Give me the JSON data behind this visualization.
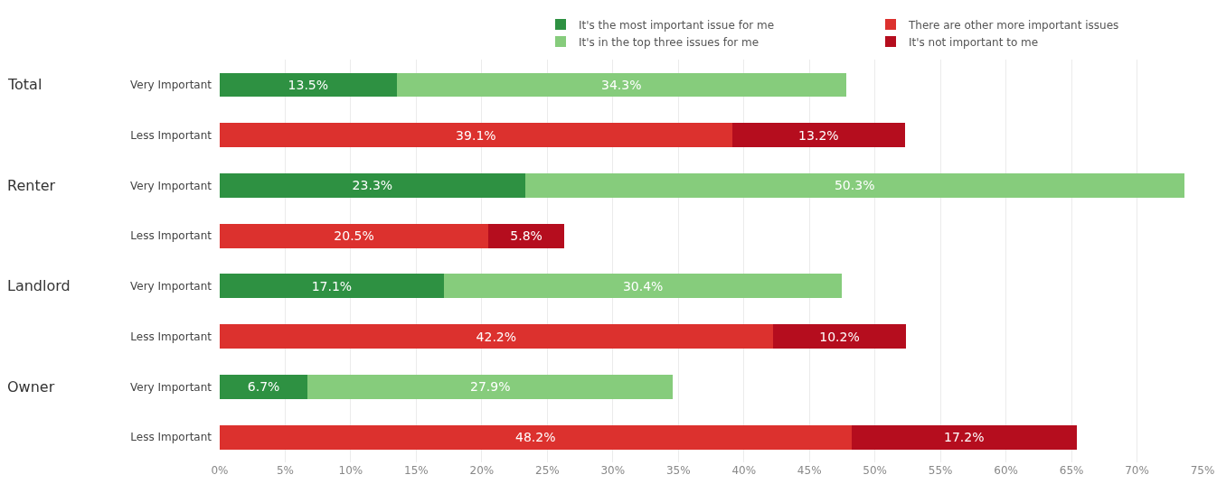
{
  "chart_data": {
    "type": "bar",
    "orientation": "horizontal",
    "stacked": true,
    "categories": [
      "Very Important",
      "Less Important",
      "Very Important",
      "Less Important",
      "Very Important",
      "Less Important",
      "Very Important",
      "Less Important"
    ],
    "series": [
      {
        "name": "It's the most important issue for me",
        "color": "#2e9142",
        "values": [
          13.5,
          null,
          23.3,
          null,
          17.1,
          null,
          6.7,
          null
        ],
        "value_labels": [
          "13.5%",
          null,
          "23.3%",
          null,
          "17.1%",
          null,
          "6.7%",
          null
        ]
      },
      {
        "name": "There are other more important issues",
        "color": "#dc312e",
        "values": [
          null,
          39.1,
          null,
          20.5,
          null,
          42.2,
          null,
          48.2
        ],
        "value_labels": [
          null,
          "39.1%",
          null,
          "20.5%",
          null,
          "42.2%",
          null,
          "48.2%"
        ]
      },
      {
        "name": "It's in the top three issues for me",
        "color": "#86cc7c",
        "values": [
          34.3,
          null,
          50.3,
          null,
          30.4,
          null,
          27.9,
          null
        ],
        "value_labels": [
          "34.3%",
          null,
          "50.3%",
          null,
          "30.4%",
          null,
          "27.9%",
          null
        ]
      },
      {
        "name": "It's not important to me",
        "color": "#b50d1e",
        "values": [
          null,
          13.2,
          null,
          5.8,
          null,
          10.2,
          null,
          17.2
        ],
        "value_labels": [
          null,
          "13.2%",
          null,
          "5.8%",
          null,
          "10.2%",
          null,
          "17.2%"
        ]
      }
    ],
    "annotations": [
      "Total",
      "Renter",
      "Landlord",
      "Owner"
    ],
    "xlim": [
      0,
      75
    ],
    "xticks": [
      {
        "value": 0,
        "label": "0%"
      },
      {
        "value": 5,
        "label": "5%"
      },
      {
        "value": 10,
        "label": "10%"
      },
      {
        "value": 15,
        "label": "15%"
      },
      {
        "value": 20,
        "label": "20%"
      },
      {
        "value": 25,
        "label": "25%"
      },
      {
        "value": 30,
        "label": "30%"
      },
      {
        "value": 35,
        "label": "35%"
      },
      {
        "value": 40,
        "label": "40%"
      },
      {
        "value": 45,
        "label": "45%"
      },
      {
        "value": 50,
        "label": "50%"
      },
      {
        "value": 55,
        "label": "55%"
      },
      {
        "value": 60,
        "label": "60%"
      },
      {
        "value": 65,
        "label": "65%"
      },
      {
        "value": 70,
        "label": "70%"
      },
      {
        "value": 75,
        "label": "75%"
      }
    ],
    "grid": "x",
    "legend": "top right"
  }
}
